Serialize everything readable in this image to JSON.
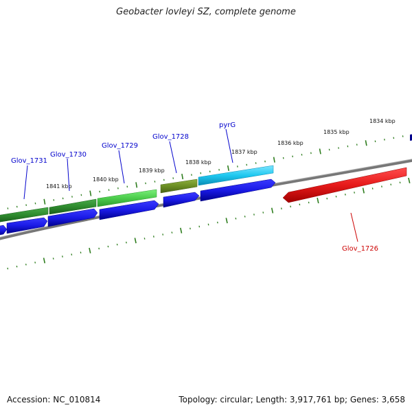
{
  "title": "Geobacter lovleyi SZ, complete genome",
  "footer": {
    "accession": "Accession: NC_010814",
    "summary": "Topology: circular; Length: 3,917,761 bp; Genes: 3,658"
  },
  "ruler": {
    "labels": [
      "1841 kbp",
      "1840 kbp",
      "1839 kbp",
      "1838 kbp",
      "1837 kbp",
      "1836 kbp",
      "1835 kbp",
      "1834 kbp"
    ]
  },
  "genes": [
    {
      "name": "Glov_1731",
      "color": "#0000cc"
    },
    {
      "name": "Glov_1730",
      "color": "#0000cc"
    },
    {
      "name": "Glov_1729",
      "color": "#0000cc"
    },
    {
      "name": "Glov_1728",
      "color": "#0000cc"
    },
    {
      "name": "pyrG",
      "color": "#0000cc"
    },
    {
      "name": "Glov_1726",
      "color": "#cc0000"
    }
  ],
  "colors": {
    "backbone": "#808080",
    "tick": "#2e7d1e",
    "feature_dark_green": "#2e8b2e",
    "feature_light_green": "#4ccc4c",
    "feature_olive": "#6b8e23",
    "feature_cyan": "#1ec8f0",
    "feature_blue": "#1a1ae6",
    "feature_red": "#e61a1a"
  }
}
